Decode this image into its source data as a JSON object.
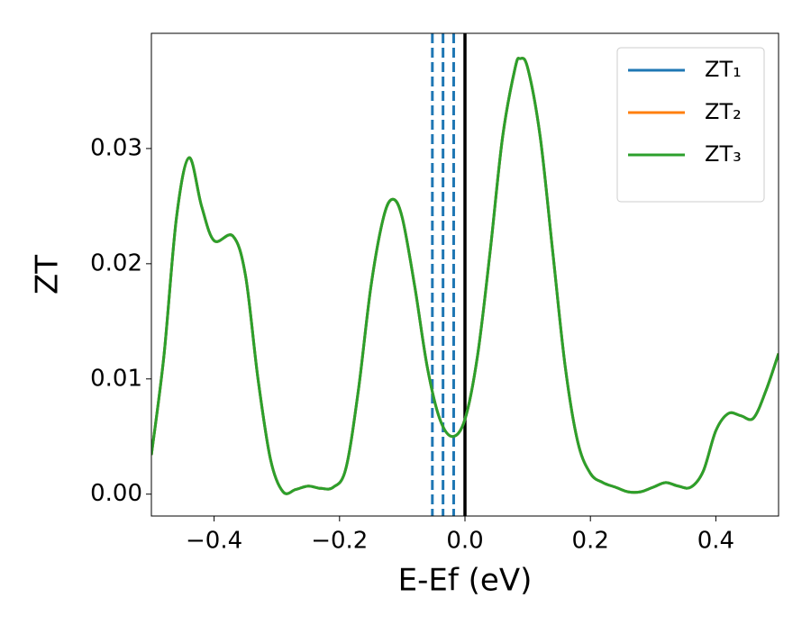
{
  "chart_data": {
    "type": "line",
    "xlabel": "E-Ef (eV)",
    "ylabel": "ZT",
    "x": [
      -0.5,
      -0.48,
      -0.46,
      -0.44,
      -0.42,
      -0.4,
      -0.37,
      -0.35,
      -0.33,
      -0.31,
      -0.29,
      -0.27,
      -0.25,
      -0.23,
      -0.21,
      -0.19,
      -0.17,
      -0.15,
      -0.13,
      -0.115,
      -0.1,
      -0.08,
      -0.06,
      -0.04,
      -0.02,
      0.0,
      0.02,
      0.04,
      0.06,
      0.08,
      0.088,
      0.1,
      0.12,
      0.14,
      0.16,
      0.18,
      0.2,
      0.22,
      0.24,
      0.26,
      0.28,
      0.3,
      0.32,
      0.34,
      0.36,
      0.38,
      0.4,
      0.42,
      0.44,
      0.46,
      0.48,
      0.5
    ],
    "series": [
      {
        "name": "ZT₁",
        "color": "#1f77b4",
        "values": [
          0.0034,
          0.012,
          0.024,
          0.0292,
          0.025,
          0.022,
          0.0224,
          0.019,
          0.01,
          0.003,
          0.0002,
          0.0004,
          0.0007,
          0.0005,
          0.0006,
          0.0022,
          0.009,
          0.018,
          0.024,
          0.0256,
          0.024,
          0.018,
          0.011,
          0.0065,
          0.005,
          0.0065,
          0.012,
          0.021,
          0.031,
          0.037,
          0.0378,
          0.037,
          0.031,
          0.021,
          0.011,
          0.0045,
          0.0018,
          0.001,
          0.0006,
          0.0002,
          0.0002,
          0.0006,
          0.001,
          0.0007,
          0.0006,
          0.002,
          0.0055,
          0.007,
          0.0068,
          0.0066,
          0.009,
          0.0122
        ]
      },
      {
        "name": "ZT₂",
        "color": "#ff7f0e",
        "values": [
          0.0034,
          0.012,
          0.024,
          0.0292,
          0.025,
          0.022,
          0.0224,
          0.019,
          0.01,
          0.003,
          0.0002,
          0.0004,
          0.0007,
          0.0005,
          0.0006,
          0.0022,
          0.009,
          0.018,
          0.024,
          0.0256,
          0.024,
          0.018,
          0.011,
          0.0065,
          0.005,
          0.0065,
          0.012,
          0.021,
          0.031,
          0.037,
          0.0378,
          0.037,
          0.031,
          0.021,
          0.011,
          0.0045,
          0.0018,
          0.001,
          0.0006,
          0.0002,
          0.0002,
          0.0006,
          0.001,
          0.0007,
          0.0006,
          0.002,
          0.0055,
          0.007,
          0.0068,
          0.0066,
          0.009,
          0.0122
        ]
      },
      {
        "name": "ZT₃",
        "color": "#2ca02c",
        "values": [
          0.0034,
          0.012,
          0.024,
          0.0292,
          0.025,
          0.022,
          0.0224,
          0.019,
          0.01,
          0.003,
          0.0002,
          0.0004,
          0.0007,
          0.0005,
          0.0006,
          0.0022,
          0.009,
          0.018,
          0.024,
          0.0256,
          0.024,
          0.018,
          0.011,
          0.0065,
          0.005,
          0.0065,
          0.012,
          0.021,
          0.031,
          0.037,
          0.0378,
          0.037,
          0.031,
          0.021,
          0.011,
          0.0045,
          0.0018,
          0.001,
          0.0006,
          0.0002,
          0.0002,
          0.0006,
          0.001,
          0.0007,
          0.0006,
          0.002,
          0.0055,
          0.007,
          0.0068,
          0.0066,
          0.009,
          0.0122
        ]
      }
    ],
    "vlines": [
      {
        "x": -0.052,
        "color": "#1f77b4",
        "style": "dashed"
      },
      {
        "x": -0.035,
        "color": "#1f77b4",
        "style": "dashed"
      },
      {
        "x": -0.018,
        "color": "#1f77b4",
        "style": "dashed"
      },
      {
        "x": 0.0,
        "color": "#000000",
        "style": "solid"
      }
    ],
    "xlim": [
      -0.5,
      0.5
    ],
    "xticks": [
      {
        "value": -0.4,
        "label": "−0.4"
      },
      {
        "value": -0.2,
        "label": "−0.2"
      },
      {
        "value": 0.0,
        "label": "0.0"
      },
      0.2,
      0.4
    ],
    "ylim": [
      -0.0019,
      0.04
    ],
    "yticks": [
      {
        "value": 0.0,
        "label": "0.00"
      },
      0.01,
      0.02,
      0.03
    ],
    "legend": "upper right"
  }
}
